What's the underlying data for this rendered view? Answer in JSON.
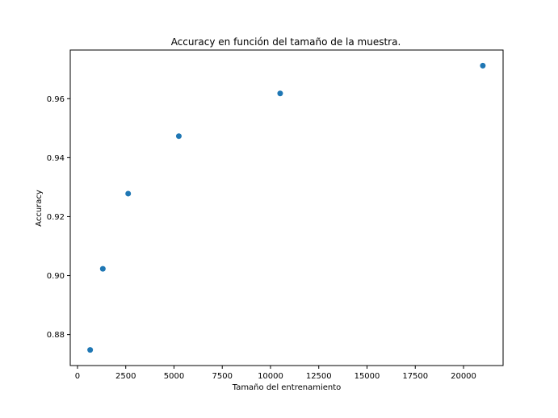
{
  "chart_data": {
    "type": "scatter",
    "title": "Accuracy en función del tamaño de la muestra.",
    "xlabel": "Tamaño del entrenamiento",
    "ylabel": "Accuracy",
    "xlim": [
      -375,
      22050
    ],
    "ylim": [
      0.8695,
      0.9765
    ],
    "xticks": [
      0,
      2500,
      5000,
      7500,
      10000,
      12500,
      15000,
      17500,
      20000
    ],
    "xtick_labels": [
      "0",
      "2500",
      "5000",
      "7500",
      "10000",
      "12500",
      "15000",
      "17500",
      "20000"
    ],
    "yticks": [
      0.88,
      0.9,
      0.92,
      0.94,
      0.96
    ],
    "ytick_labels": [
      "0.88",
      "0.90",
      "0.92",
      "0.94",
      "0.96"
    ],
    "grid": false,
    "color": "#1f77b4",
    "series": [
      {
        "points": [
          {
            "x": 656,
            "y": 0.8748
          },
          {
            "x": 1312,
            "y": 0.9023
          },
          {
            "x": 2625,
            "y": 0.9278
          },
          {
            "x": 5250,
            "y": 0.9473
          },
          {
            "x": 10500,
            "y": 0.9618
          },
          {
            "x": 21000,
            "y": 0.9712
          }
        ]
      }
    ]
  }
}
